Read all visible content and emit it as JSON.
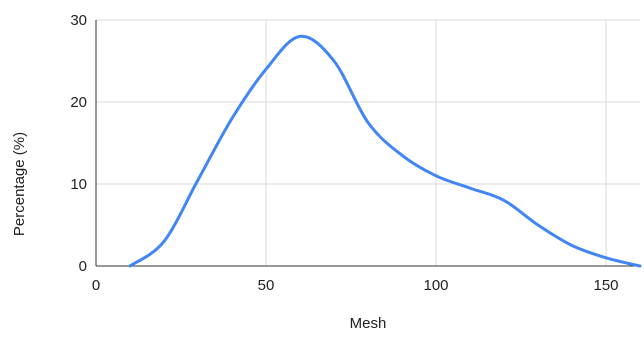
{
  "chart_data": {
    "type": "line",
    "title": "",
    "xlabel": "Mesh",
    "ylabel": "Percentage (%)",
    "xlim": [
      0,
      160
    ],
    "ylim": [
      0,
      30
    ],
    "x_ticks": [
      "0",
      "50",
      "100",
      "150"
    ],
    "y_ticks": [
      "0",
      "10",
      "20",
      "30"
    ],
    "grid": true,
    "legend": "none",
    "series": [
      {
        "color": "#4285f4",
        "x": [
          10,
          20,
          30,
          40,
          50,
          60,
          70,
          80,
          90,
          100,
          110,
          120,
          130,
          140,
          150,
          160
        ],
        "y": [
          0,
          3,
          10.5,
          18,
          24,
          28,
          25,
          17.5,
          13.5,
          11,
          9.5,
          8,
          5,
          2.5,
          1,
          0
        ]
      }
    ]
  }
}
